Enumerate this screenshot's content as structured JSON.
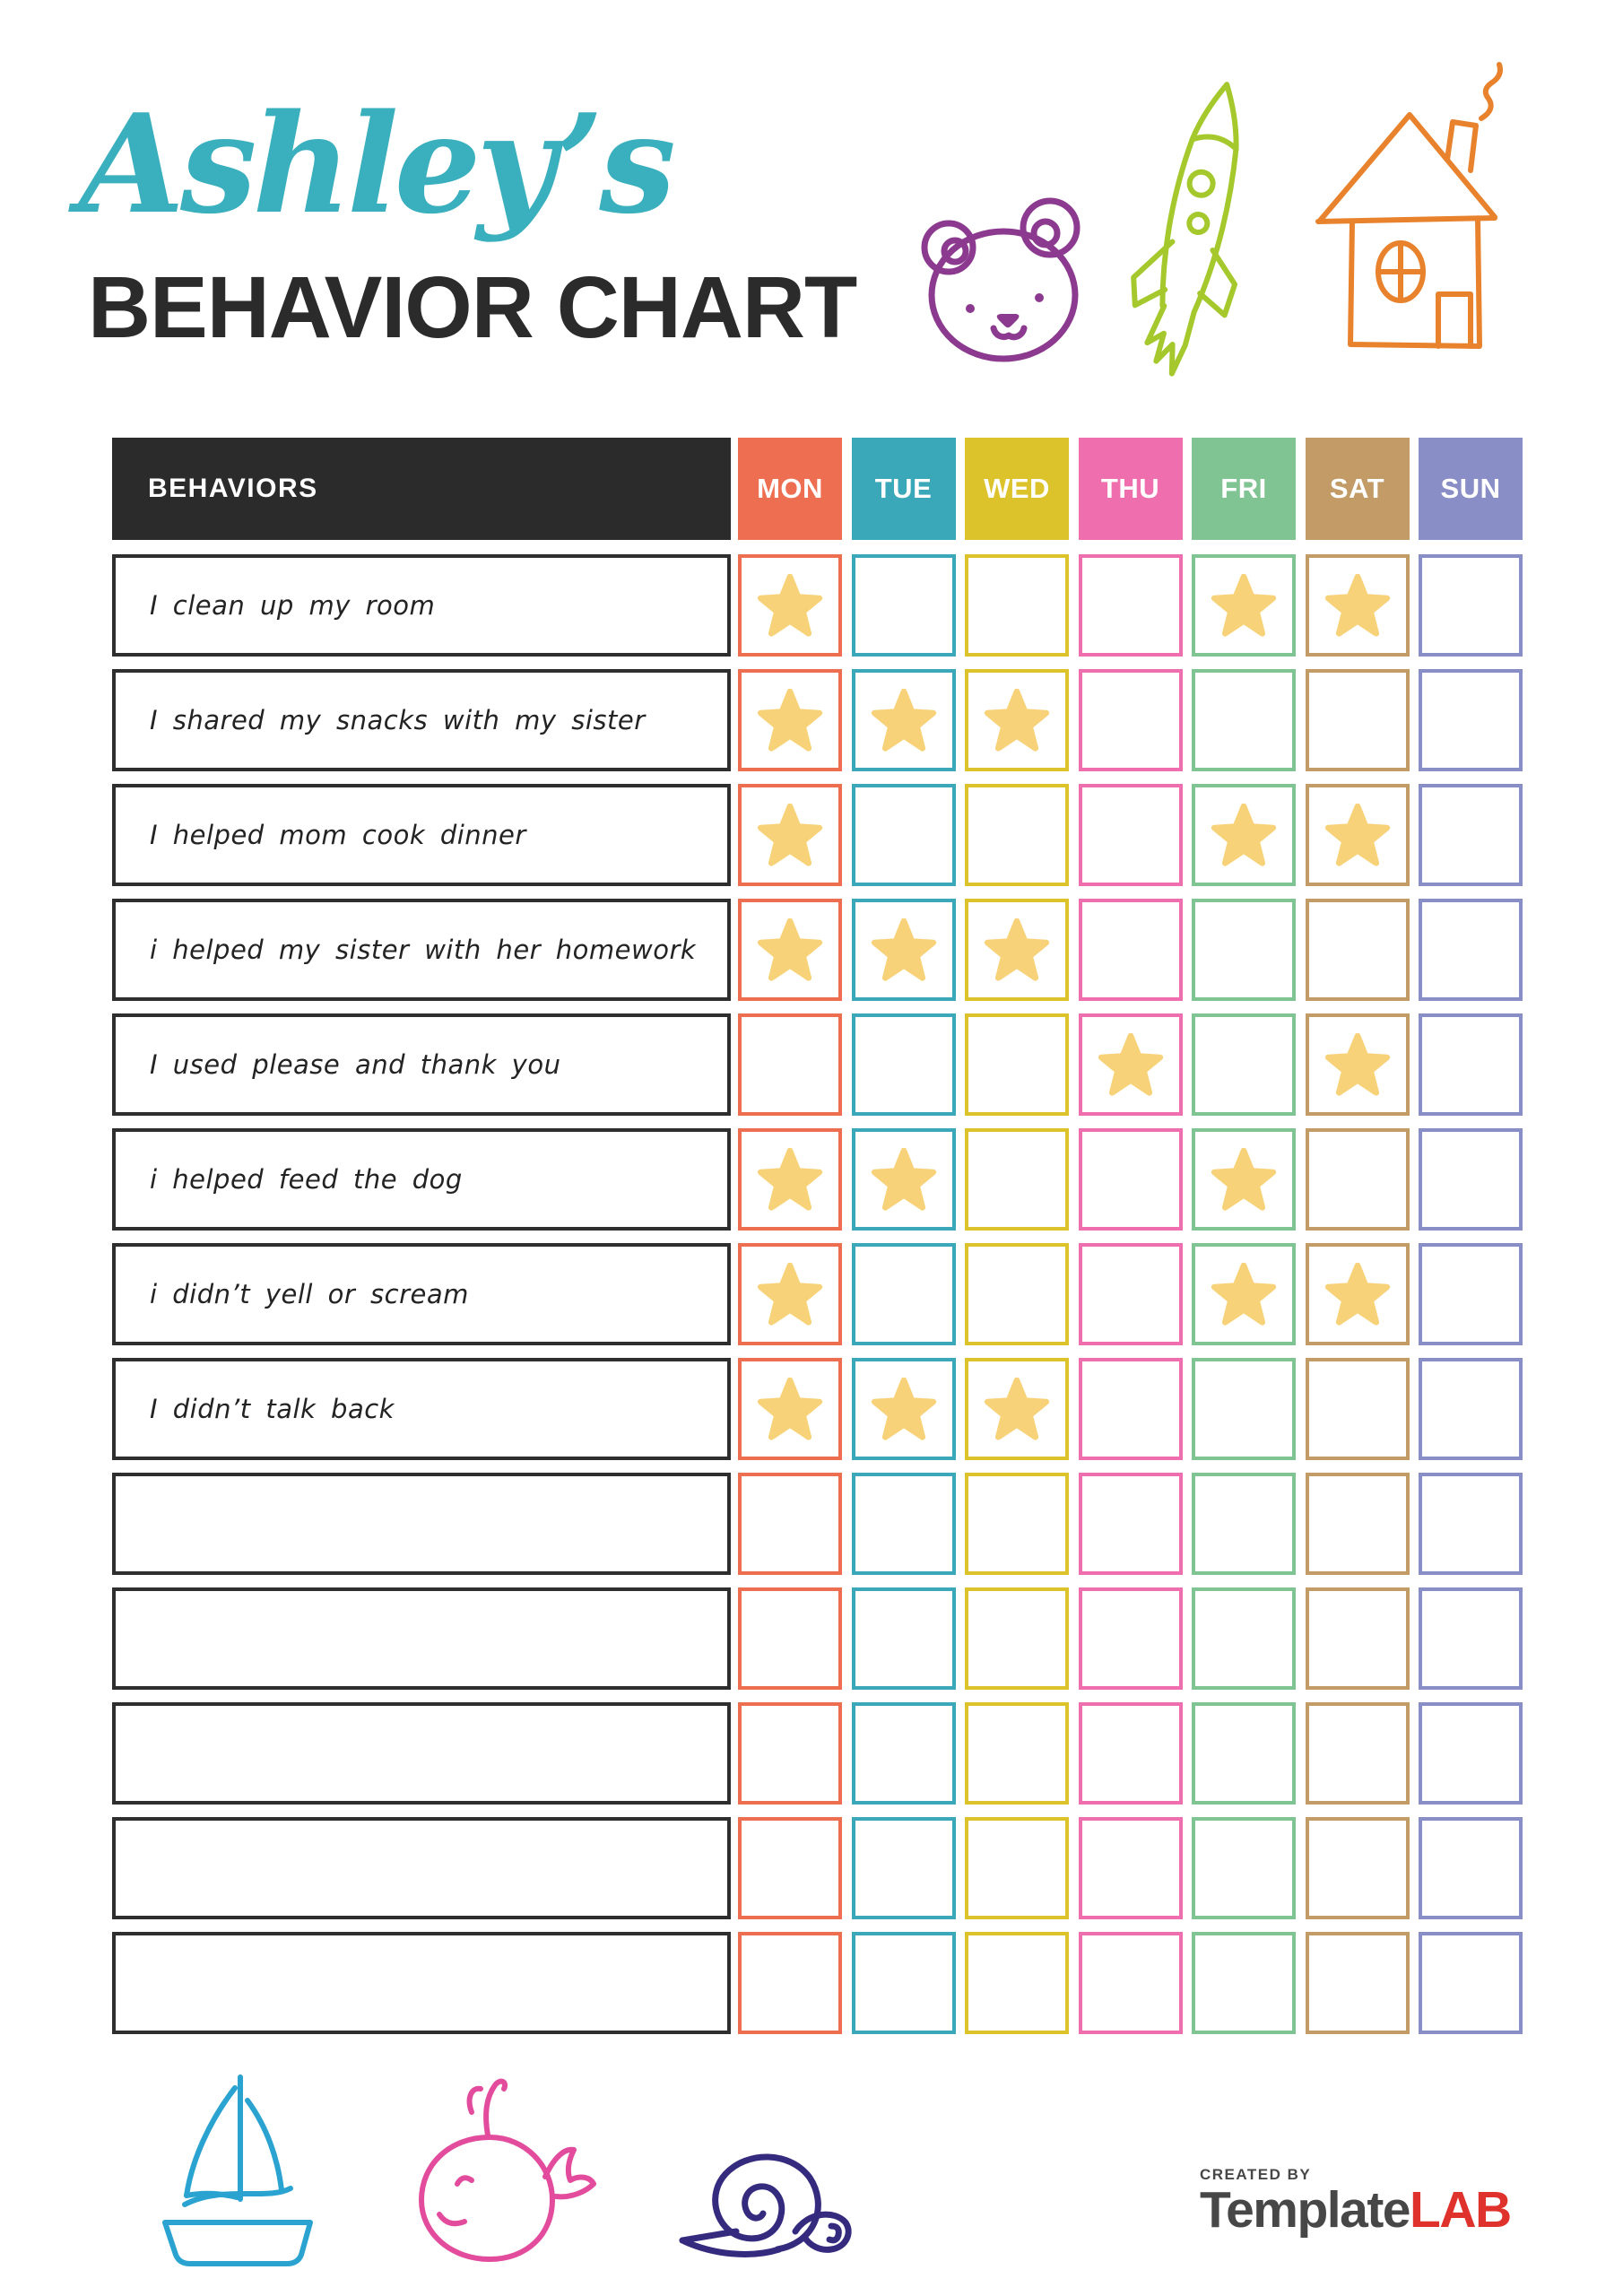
{
  "page": {
    "title": "Ashley’s",
    "subtitle": "BEHAVIOR CHART"
  },
  "table": {
    "header": "BEHAVIORS",
    "star_color": "#F7D279",
    "days": [
      {
        "label": "MON",
        "color": "#EE6E52"
      },
      {
        "label": "TUE",
        "color": "#3AA8B8"
      },
      {
        "label": "WED",
        "color": "#DCC32B"
      },
      {
        "label": "THU",
        "color": "#EF6FAE"
      },
      {
        "label": "FRI",
        "color": "#80C494"
      },
      {
        "label": "SAT",
        "color": "#C39B67"
      },
      {
        "label": "SUN",
        "color": "#8A8EC6"
      }
    ],
    "rows": [
      {
        "behavior": "I clean up my room",
        "stars": [
          "MON",
          "FRI",
          "SAT"
        ]
      },
      {
        "behavior": "I shared my snacks with my sister",
        "stars": [
          "MON",
          "TUE",
          "WED"
        ]
      },
      {
        "behavior": "I helped mom cook dinner",
        "stars": [
          "MON",
          "FRI",
          "SAT"
        ]
      },
      {
        "behavior": "i helped my sister with her homework",
        "stars": [
          "MON",
          "TUE",
          "WED"
        ]
      },
      {
        "behavior": "I used please and thank you",
        "stars": [
          "THU",
          "SAT"
        ]
      },
      {
        "behavior": "i helped feed the dog",
        "stars": [
          "MON",
          "TUE",
          "FRI"
        ]
      },
      {
        "behavior": "i didn’t yell or scream",
        "stars": [
          "MON",
          "FRI",
          "SAT"
        ]
      },
      {
        "behavior": "I didn’t talk back",
        "stars": [
          "MON",
          "TUE",
          "WED"
        ]
      },
      {
        "behavior": "",
        "stars": []
      },
      {
        "behavior": "",
        "stars": []
      },
      {
        "behavior": "",
        "stars": []
      },
      {
        "behavior": "",
        "stars": []
      },
      {
        "behavior": "",
        "stars": []
      }
    ]
  },
  "footer": {
    "created_by": "CREATED BY",
    "logo_primary": "Template",
    "logo_accent": "LAB"
  },
  "decorations": {
    "top_icons": [
      "bear-icon",
      "rocket-icon",
      "house-icon"
    ],
    "bottom_icons": [
      "sailboat-icon",
      "whale-icon",
      "snail-icon"
    ],
    "icon_colors": {
      "bear": "#8C3A8F",
      "rocket": "#A5C92D",
      "house": "#E8822D",
      "sailboat": "#2AA3D1",
      "whale": "#E34B9D",
      "snail": "#342B7F"
    }
  },
  "colors": {
    "title_accent": "#3AAFBD",
    "ink": "#2B2B2B",
    "logo_gray": "#474747",
    "logo_red": "#E0322C"
  }
}
